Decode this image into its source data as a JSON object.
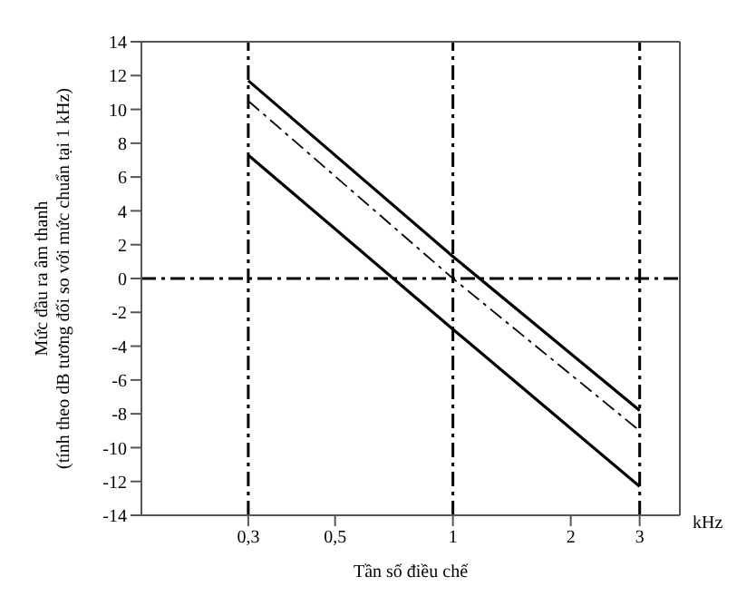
{
  "chart_data": {
    "type": "line",
    "xlabel": "Tần số điều chế",
    "ylabel": "Mức đầu ra âm thanh\n(tính theo dB tương đối so với mức chuẩn tại 1 kHz)",
    "annotations": [
      "kHz"
    ],
    "x": [
      0.3,
      1,
      3
    ],
    "series": [
      {
        "color": "#000000",
        "values": [
          11.7,
          1.3,
          -7.8
        ]
      },
      {
        "color": "#000000",
        "values": [
          10.5,
          0,
          -9.0
        ],
        "line_style": "dashed"
      },
      {
        "color": "#000000",
        "values": [
          7.3,
          -3.0,
          -12.3
        ]
      }
    ],
    "log": "x",
    "xlim": [
      0.16,
      3.8
    ],
    "xticks": [
      {
        "value": 0.3,
        "label": "0,3"
      },
      {
        "value": 0.5,
        "label": "0,5"
      },
      1,
      2,
      3
    ],
    "ylim": [
      -14,
      14
    ],
    "yticks": [
      -14,
      -12,
      -10,
      -8,
      -6,
      -4,
      -2,
      0,
      2,
      4,
      6,
      8,
      10,
      12,
      14
    ],
    "grid": false,
    "legend": false,
    "marker": "none",
    "line_style": "solid",
    "ref_lines": [
      {
        "axis": "y",
        "value": 0,
        "line_style": "dashed"
      },
      {
        "axis": "x",
        "value": 0.3,
        "line_style": "dashed"
      },
      {
        "axis": "x",
        "value": 1,
        "line_style": "dashed"
      },
      {
        "axis": "x",
        "value": 3,
        "line_style": "dashed"
      }
    ]
  }
}
